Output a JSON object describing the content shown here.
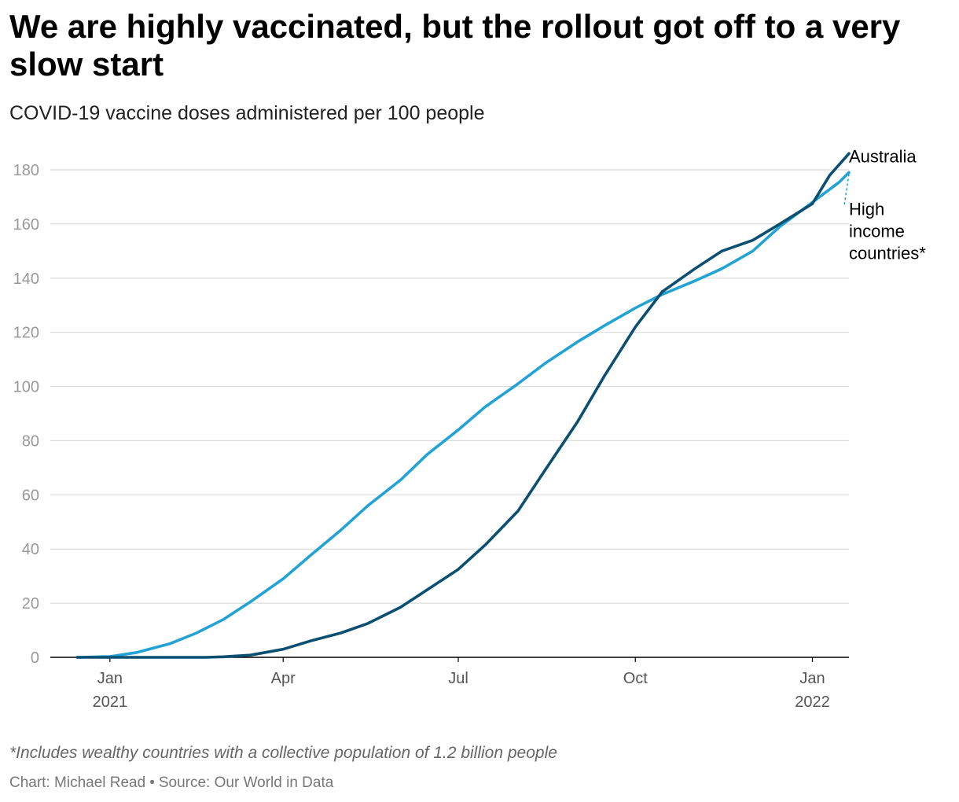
{
  "title": "We are highly vaccinated, but the rollout got off to a very slow start",
  "subtitle": "COVID-19 vaccine doses administered per 100 people",
  "footnote": "*Includes wealthy countries with a collective population of 1.2 billion people",
  "credit": {
    "chart": "Chart: Michael Read",
    "separator": "•",
    "source": "Source: Our World in Data"
  },
  "chart_data": {
    "type": "line",
    "ylim": [
      0,
      180
    ],
    "yticks": [
      "0",
      "20",
      "40",
      "60",
      "80",
      "100",
      "120",
      "140",
      "160",
      "180"
    ],
    "xlim": [
      "2020-12-01",
      "2022-01-20"
    ],
    "xticks": [
      {
        "date": "2021-01-01",
        "label": "Jan",
        "year": "2021"
      },
      {
        "date": "2021-04-01",
        "label": "Apr",
        "year": ""
      },
      {
        "date": "2021-07-01",
        "label": "Jul",
        "year": ""
      },
      {
        "date": "2021-10-01",
        "label": "Oct",
        "year": ""
      },
      {
        "date": "2022-01-01",
        "label": "Jan",
        "year": "2022"
      }
    ],
    "grid": true,
    "series": [
      {
        "name": "High income countries*",
        "color": "#22a3d3",
        "points": [
          [
            "2020-12-15",
            0
          ],
          [
            "2021-01-01",
            0.3
          ],
          [
            "2021-01-15",
            1.8
          ],
          [
            "2021-02-01",
            5
          ],
          [
            "2021-02-15",
            9
          ],
          [
            "2021-03-01",
            14
          ],
          [
            "2021-03-15",
            20.5
          ],
          [
            "2021-04-01",
            29
          ],
          [
            "2021-04-15",
            37.5
          ],
          [
            "2021-05-01",
            47
          ],
          [
            "2021-05-15",
            56
          ],
          [
            "2021-06-01",
            65.5
          ],
          [
            "2021-06-15",
            75
          ],
          [
            "2021-07-01",
            84
          ],
          [
            "2021-07-15",
            92.5
          ],
          [
            "2021-08-01",
            101
          ],
          [
            "2021-08-15",
            108.5
          ],
          [
            "2021-09-01",
            116.5
          ],
          [
            "2021-09-15",
            122.5
          ],
          [
            "2021-10-01",
            129
          ],
          [
            "2021-10-15",
            134
          ],
          [
            "2021-11-01",
            139
          ],
          [
            "2021-11-15",
            143.5
          ],
          [
            "2021-12-01",
            150
          ],
          [
            "2021-12-15",
            159
          ],
          [
            "2022-01-01",
            168
          ],
          [
            "2022-01-15",
            175.5
          ],
          [
            "2022-01-20",
            179
          ]
        ]
      },
      {
        "name": "Australia",
        "color": "#0b4f71",
        "points": [
          [
            "2020-12-15",
            0
          ],
          [
            "2021-02-01",
            0
          ],
          [
            "2021-02-20",
            0
          ],
          [
            "2021-03-01",
            0.2
          ],
          [
            "2021-03-15",
            0.8
          ],
          [
            "2021-04-01",
            3
          ],
          [
            "2021-04-15",
            6
          ],
          [
            "2021-05-01",
            9
          ],
          [
            "2021-05-15",
            12.5
          ],
          [
            "2021-06-01",
            18.5
          ],
          [
            "2021-06-15",
            25
          ],
          [
            "2021-07-01",
            32.5
          ],
          [
            "2021-07-15",
            41.5
          ],
          [
            "2021-08-01",
            54
          ],
          [
            "2021-08-15",
            69
          ],
          [
            "2021-09-01",
            87
          ],
          [
            "2021-09-15",
            104
          ],
          [
            "2021-10-01",
            122
          ],
          [
            "2021-10-15",
            135
          ],
          [
            "2021-11-01",
            143.5
          ],
          [
            "2021-11-15",
            150
          ],
          [
            "2021-12-01",
            154
          ],
          [
            "2021-12-15",
            160
          ],
          [
            "2022-01-01",
            167.5
          ],
          [
            "2022-01-10",
            178
          ],
          [
            "2022-01-20",
            186
          ]
        ]
      }
    ],
    "end_labels": [
      {
        "series": "Australia",
        "lines": [
          "Australia"
        ]
      },
      {
        "series": "High income countries*",
        "lines": [
          "High",
          "income",
          "countries*"
        ]
      }
    ]
  }
}
